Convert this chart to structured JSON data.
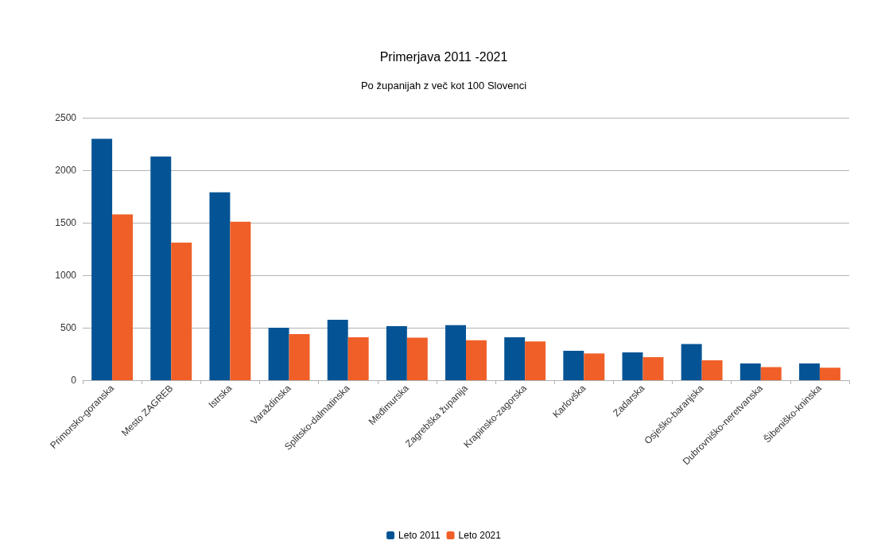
{
  "chart_data": {
    "type": "bar",
    "title": "Primerjava 2011 -2021",
    "subtitle": "Po županijah z več kot 100 Slovenci",
    "categories": [
      "Primorsko-goranska",
      "Mesto ZAGREB",
      "Istrska",
      "Varaždinska",
      "Splitsko-dalmatinska",
      "Međimurska",
      "Zagrebška županija",
      "Krapinsko-zagorska",
      "Karlovška",
      "Zadarska",
      "Osješko-baranjska",
      "Dubrovniško-neretvanska",
      "Šibeniško-kninska"
    ],
    "series": [
      {
        "name": "Leto 2011",
        "color": "#045495",
        "values": [
          2300,
          2130,
          1790,
          500,
          575,
          515,
          525,
          410,
          280,
          265,
          345,
          160,
          160
        ]
      },
      {
        "name": "Leto 2021",
        "color": "#f05f27",
        "values": [
          1580,
          1310,
          1510,
          440,
          410,
          405,
          380,
          370,
          255,
          220,
          190,
          125,
          120
        ]
      }
    ],
    "ylim": [
      0,
      2500
    ],
    "yticks": [
      0,
      500,
      1000,
      1500,
      2000,
      2500
    ],
    "grid": "y",
    "legend": "bottom"
  }
}
